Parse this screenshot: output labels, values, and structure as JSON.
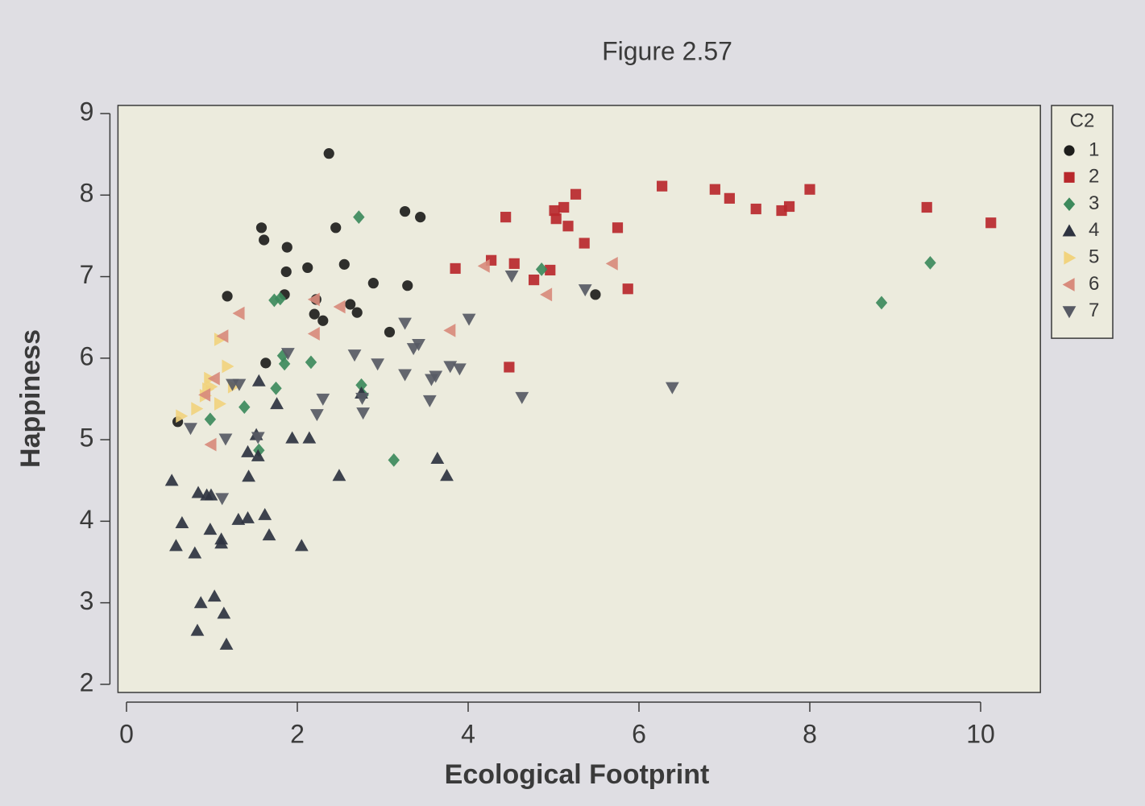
{
  "chart_data": {
    "type": "scatter",
    "title": "Figure 2.57",
    "x_label": "Ecological Footprint",
    "y_label": "Happiness",
    "xlim": [
      -0.1,
      10.7
    ],
    "ylim": [
      1.9,
      9.1
    ],
    "xticks": [
      0,
      2,
      4,
      6,
      8,
      10
    ],
    "yticks": [
      2,
      3,
      4,
      5,
      6,
      7,
      8,
      9
    ],
    "legend_title": "C2",
    "legend_position": "right",
    "series": [
      {
        "name": "1",
        "color": "#1e1e1c",
        "marker": "circle",
        "x": [
          2.37,
          1.58,
          1.61,
          1.88,
          2.45,
          3.26,
          3.44,
          1.87,
          2.12,
          2.55,
          1.18,
          1.85,
          2.89,
          3.29,
          2.22,
          2.2,
          2.3,
          2.62,
          2.7,
          3.08,
          1.63,
          0.6,
          5.49
        ],
        "values": [
          8.51,
          7.6,
          7.45,
          7.36,
          7.6,
          7.8,
          7.73,
          7.06,
          7.11,
          7.15,
          6.76,
          6.78,
          6.92,
          6.89,
          6.72,
          6.54,
          6.46,
          6.66,
          6.56,
          6.32,
          5.94,
          5.22,
          6.78
        ]
      },
      {
        "name": "2",
        "color": "#b8282c",
        "marker": "square",
        "x": [
          3.85,
          4.27,
          4.44,
          4.54,
          4.77,
          4.96,
          4.48,
          5.01,
          5.12,
          5.03,
          5.17,
          5.26,
          5.36,
          5.75,
          5.87,
          6.27,
          6.89,
          7.06,
          7.37,
          7.67,
          7.76,
          8.0,
          9.37,
          10.12
        ],
        "values": [
          7.1,
          7.2,
          7.73,
          7.16,
          6.96,
          7.08,
          5.89,
          7.81,
          7.85,
          7.71,
          7.62,
          8.01,
          7.41,
          7.6,
          6.85,
          8.11,
          8.07,
          7.96,
          7.83,
          7.81,
          7.86,
          8.07,
          7.85,
          7.66
        ]
      },
      {
        "name": "3",
        "color": "#3d8a5c",
        "marker": "diamond",
        "x": [
          2.72,
          1.73,
          1.8,
          1.83,
          1.85,
          2.16,
          1.75,
          1.38,
          0.98,
          2.75,
          1.55,
          3.13,
          4.86,
          8.84,
          9.41,
          2.77
        ],
        "values": [
          7.73,
          6.71,
          6.73,
          6.03,
          5.93,
          5.95,
          5.63,
          5.4,
          5.25,
          5.67,
          4.87,
          4.75,
          7.09,
          6.68,
          7.17,
          5.55
        ]
      },
      {
        "name": "4",
        "color": "#2e3340",
        "marker": "triangle-up",
        "x": [
          0.53,
          0.65,
          0.58,
          0.8,
          0.84,
          0.94,
          0.99,
          0.98,
          1.11,
          1.11,
          0.87,
          1.03,
          1.14,
          0.83,
          1.17,
          1.31,
          1.42,
          1.62,
          1.67,
          2.05,
          1.43,
          1.42,
          1.54,
          1.52,
          1.55,
          1.76,
          1.94,
          2.14,
          2.49,
          3.64,
          3.75,
          2.75
        ],
        "values": [
          4.5,
          3.98,
          3.7,
          3.61,
          4.35,
          4.32,
          4.32,
          3.9,
          3.78,
          3.73,
          3.0,
          3.08,
          2.87,
          2.66,
          2.49,
          4.02,
          4.04,
          4.08,
          3.83,
          3.7,
          4.55,
          4.85,
          4.8,
          5.06,
          5.72,
          5.44,
          5.02,
          5.02,
          4.56,
          4.77,
          4.56,
          5.57
        ]
      },
      {
        "name": "5",
        "color": "#f1d37e",
        "marker": "triangle-right",
        "x": [
          0.64,
          0.82,
          0.92,
          0.95,
          0.99,
          1.09,
          1.09,
          1.18,
          1.25,
          0.97
        ],
        "values": [
          5.29,
          5.38,
          5.54,
          5.62,
          5.65,
          5.44,
          6.23,
          5.9,
          5.65,
          5.75
        ]
      },
      {
        "name": "6",
        "color": "#d88b7c",
        "marker": "triangle-left",
        "x": [
          1.32,
          1.13,
          1.03,
          0.92,
          0.99,
          2.2,
          2.2,
          2.5,
          3.79,
          4.19,
          4.92,
          5.69
        ],
        "values": [
          6.55,
          6.27,
          5.75,
          5.55,
          4.94,
          6.72,
          6.3,
          6.63,
          6.34,
          7.13,
          6.78,
          7.16
        ]
      },
      {
        "name": "7",
        "color": "#575a64",
        "marker": "triangle-down",
        "x": [
          0.75,
          1.16,
          1.12,
          1.24,
          1.32,
          1.54,
          1.89,
          2.3,
          2.23,
          2.67,
          2.94,
          2.77,
          2.76,
          3.26,
          3.36,
          3.42,
          3.26,
          3.55,
          3.57,
          3.62,
          3.79,
          3.9,
          4.01,
          4.51,
          4.63,
          5.37,
          6.39
        ],
        "values": [
          5.14,
          5.01,
          4.28,
          5.68,
          5.68,
          5.03,
          6.06,
          5.5,
          5.31,
          6.04,
          5.93,
          5.33,
          5.51,
          6.43,
          6.12,
          6.17,
          5.8,
          5.48,
          5.74,
          5.78,
          5.9,
          5.87,
          6.48,
          7.01,
          5.52,
          6.84,
          5.64
        ]
      }
    ]
  }
}
